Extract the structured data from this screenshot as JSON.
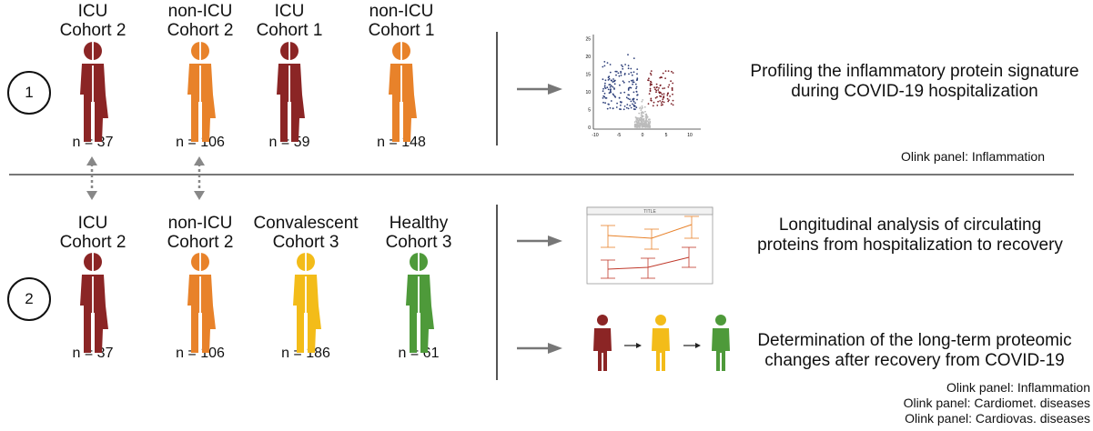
{
  "colors": {
    "icu": "#8b2525",
    "non_icu": "#e8822a",
    "convalescent": "#f3bc19",
    "healthy": "#4e9a3a",
    "volcano_down": "#2d3f7a",
    "volcano_up": "#7a1f26",
    "volcano_ns": "#bbbbbb"
  },
  "row1": {
    "step": "1",
    "cohorts": [
      {
        "line1": "ICU",
        "line2": "Cohort 2",
        "n": "n = 37",
        "color": "icu"
      },
      {
        "line1": "non-ICU",
        "line2": "Cohort 2",
        "n": "n = 106",
        "color": "non_icu"
      },
      {
        "line1": "ICU",
        "line2": "Cohort 1",
        "n": "n = 59",
        "color": "icu"
      },
      {
        "line1": "non-ICU",
        "line2": "Cohort 1",
        "n": "n = 148",
        "color": "non_icu"
      }
    ],
    "description_line1": "Profiling the inflammatory protein signature",
    "description_line2": "during COVID-19 hospitalization",
    "olink": "Olink panel: Inflammation",
    "volcano": {
      "y_ticks": [
        "25",
        "20",
        "15",
        "10",
        "5",
        "0"
      ],
      "x_ticks": [
        "-10",
        "-5",
        "0",
        "5",
        "10"
      ]
    }
  },
  "row2": {
    "step": "2",
    "cohorts": [
      {
        "line1": "ICU",
        "line2": "Cohort 2",
        "n": "n = 37",
        "color": "icu"
      },
      {
        "line1": "non-ICU",
        "line2": "Cohort 2",
        "n": "n = 106",
        "color": "non_icu"
      },
      {
        "line1": "Convalescent",
        "line2": "Cohort 3",
        "n": "n = 186",
        "color": "convalescent"
      },
      {
        "line1": "Healthy",
        "line2": "Cohort 3",
        "n": "n = 61",
        "color": "healthy"
      }
    ],
    "description_a_line1": "Longitudinal analysis of circulating",
    "description_a_line2": "proteins from hospitalization to recovery",
    "description_b_line1": "Determination of the long-term proteomic",
    "description_b_line2": "changes after recovery from COVID-19",
    "mini_chart_title": "TITLE",
    "olink": [
      "Olink panel: Inflammation",
      "Olink panel: Cardiomet. diseases",
      "Olink panel: Cardiovas. diseases"
    ]
  },
  "icons": [
    "person-icon",
    "arrow-right-icon",
    "double-arrow-icon",
    "volcano-plot-icon",
    "line-chart-icon"
  ]
}
